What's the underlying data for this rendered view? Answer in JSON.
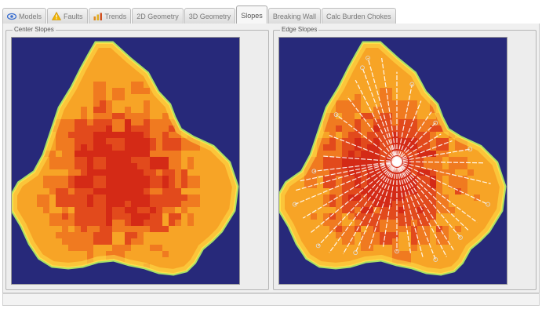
{
  "tabs": [
    {
      "label": "Models",
      "icon": "eye-icon",
      "active": false
    },
    {
      "label": "Faults",
      "icon": "warning-icon",
      "active": false
    },
    {
      "label": "Trends",
      "icon": "chart-icon",
      "active": false
    },
    {
      "label": "2D Geometry",
      "icon": "",
      "active": false
    },
    {
      "label": "3D Geometry",
      "icon": "",
      "active": false
    },
    {
      "label": "Slopes",
      "icon": "",
      "active": true
    },
    {
      "label": "Breaking Wall",
      "icon": "",
      "active": false
    },
    {
      "label": "Calc Burden Chokes",
      "icon": "",
      "active": false
    }
  ],
  "panels": {
    "center": {
      "title": "Center Slopes"
    },
    "edge": {
      "title": "Edge Slopes"
    }
  },
  "colors": {
    "plot_background": "#27297a",
    "high": "#d42a16",
    "mid_high": "#e24a1c",
    "mid": "#f07a20",
    "low": "#f7a426",
    "edge": "#ffe04a",
    "rim": "#a8e066",
    "ray": "#ffffff",
    "warning_icon": "#f0b400",
    "eye_icon": "#3b6fd1"
  }
}
